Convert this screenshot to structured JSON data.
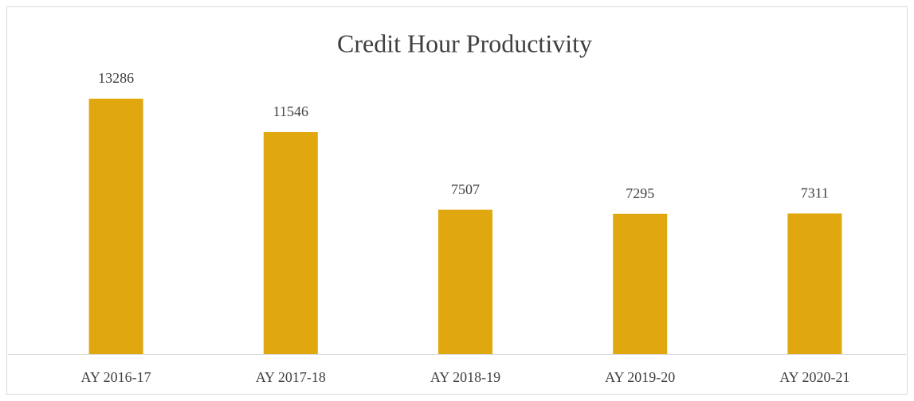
{
  "chart_data": {
    "type": "bar",
    "title": "Credit Hour Productivity",
    "categories": [
      "AY 2016-17",
      "AY 2017-18",
      "AY 2018-19",
      "AY 2019-20",
      "AY 2020-21"
    ],
    "values": [
      13286,
      11546,
      7507,
      7295,
      7311
    ],
    "color": "#e0a80e"
  }
}
